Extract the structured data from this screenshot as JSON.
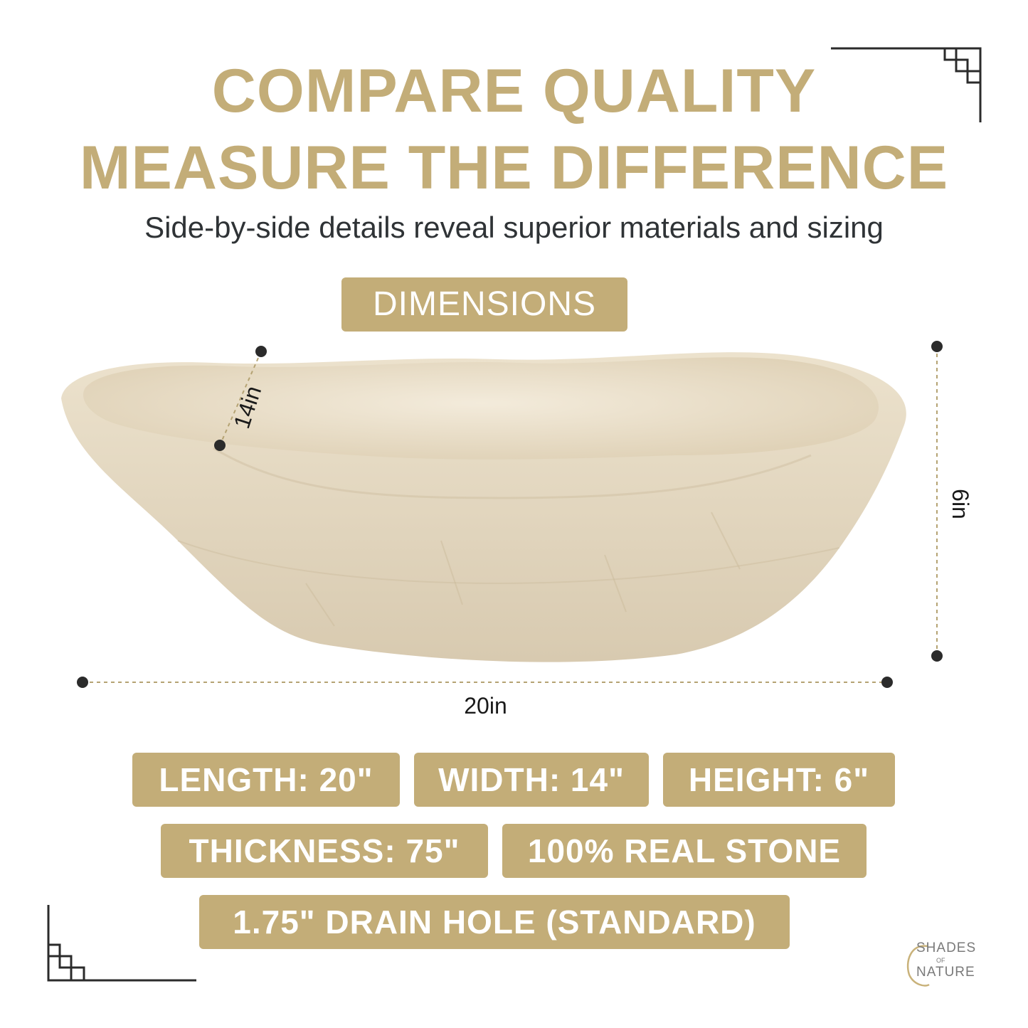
{
  "headline": {
    "line1": "COMPARE QUALITY",
    "line2": "MEASURE THE DIFFERENCE",
    "subtitle": "Side-by-side details reveal superior materials and sizing"
  },
  "dimensions_label": "DIMENSIONS",
  "measurements": {
    "length_label": "20in",
    "width_label": "14in",
    "height_label": "6in"
  },
  "specs": {
    "length": "LENGTH: 20\"",
    "width": "WIDTH: 14\"",
    "height": "HEIGHT: 6\"",
    "thickness": "THICKNESS: 75\"",
    "material": "100% REAL STONE",
    "drain": "1.75\" DRAIN HOLE (STANDARD)"
  },
  "brand": {
    "line1": "SHADES",
    "line2": "OF",
    "line3": "NATURE"
  },
  "colors": {
    "accent": "#c3ad78",
    "text_dark": "#2f3336",
    "stone": "#e8dcc6"
  }
}
